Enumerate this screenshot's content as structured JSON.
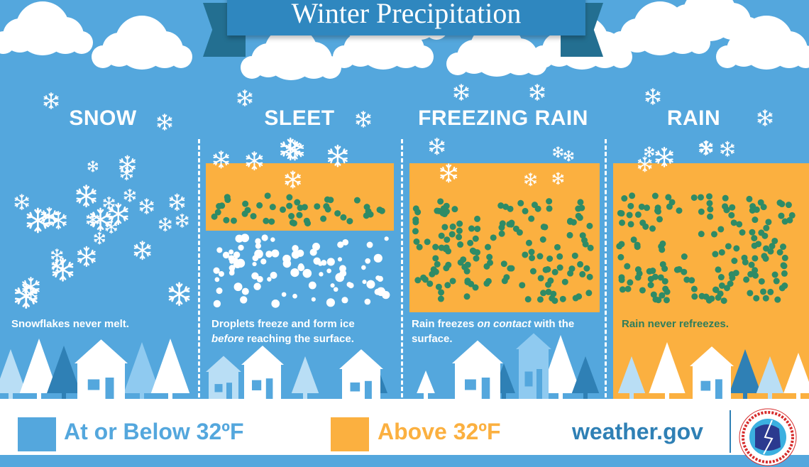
{
  "title": "Winter Precipitation",
  "colors": {
    "cold": "#54a7dd",
    "warm": "#fbb040",
    "banner": "#2f87bf",
    "raindrop": "#2e8b66",
    "site": "#2f80b5"
  },
  "panels": [
    {
      "heading": "SNOW",
      "caption": "Snowflakes never melt."
    },
    {
      "heading": "SLEET",
      "caption_pre": "Droplets freeze and form ice",
      "caption_em": "before",
      "caption_post": " reaching the surface."
    },
    {
      "heading": "FREEZING RAIN",
      "caption_pre": "Rain freezes ",
      "caption_em": "on contact",
      "caption_post": " with the surface."
    },
    {
      "heading": "RAIN",
      "caption": "Rain never refreezes."
    }
  ],
  "legend": {
    "cold_label": "At or Below 32ºF",
    "warm_label": "Above 32ºF",
    "site": "weather.gov",
    "logo_text": "NATIONAL WEATHER SERVICE"
  }
}
